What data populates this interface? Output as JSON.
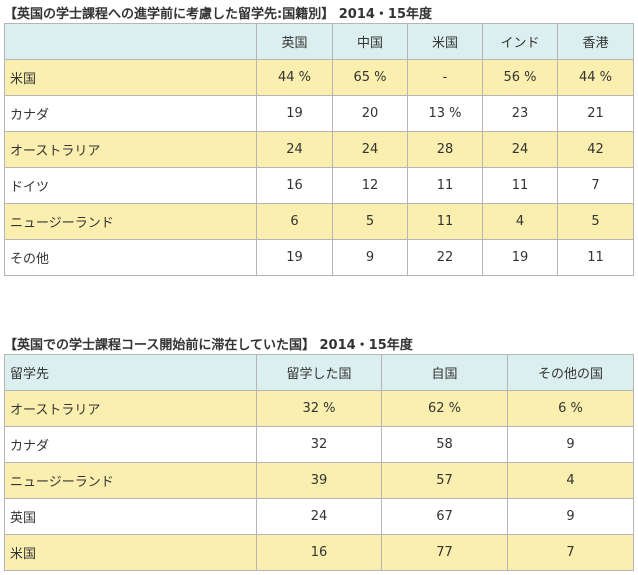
{
  "table1": {
    "title": "【英国の学士課程への進学前に考慮した留学先:国籍別】 2014・15年度",
    "header": [
      "",
      "英国",
      "中国",
      "米国",
      "インド",
      "香港"
    ],
    "rows": [
      {
        "highlight": true,
        "cells": [
          "米国",
          "44 %",
          "65 %",
          "-",
          "56 %",
          "44 %"
        ]
      },
      {
        "highlight": false,
        "cells": [
          "カナダ",
          "19",
          "20",
          "13 %",
          "23",
          "21"
        ]
      },
      {
        "highlight": true,
        "cells": [
          "オーストラリア",
          "24",
          "24",
          "28",
          "24",
          "42"
        ]
      },
      {
        "highlight": false,
        "cells": [
          "ドイツ",
          "16",
          "12",
          "11",
          "11",
          "7"
        ]
      },
      {
        "highlight": true,
        "cells": [
          "ニュージーランド",
          "6",
          "5",
          "11",
          "4",
          "5"
        ]
      },
      {
        "highlight": false,
        "cells": [
          "その他",
          "19",
          "9",
          "22",
          "19",
          "11"
        ]
      }
    ]
  },
  "table2": {
    "title": "【英国での学士課程コース開始前に滞在していた国】 2014・15年度",
    "header": [
      "留学先",
      "留学した国",
      "自国",
      "その他の国"
    ],
    "rows": [
      {
        "highlight": true,
        "cells": [
          "オーストラリア",
          "32 %",
          "62 %",
          "6 %"
        ]
      },
      {
        "highlight": false,
        "cells": [
          "カナダ",
          "32",
          "58",
          "9"
        ]
      },
      {
        "highlight": true,
        "cells": [
          "ニュージーランド",
          "39",
          "57",
          "4"
        ]
      },
      {
        "highlight": false,
        "cells": [
          "英国",
          "24",
          "67",
          "9"
        ]
      },
      {
        "highlight": true,
        "cells": [
          "米国",
          "16",
          "77",
          "7"
        ]
      }
    ]
  },
  "colors": {
    "header_bg": "#dcefef",
    "highlight_bg": "#fbefb0",
    "border": "#b5b5b5"
  }
}
